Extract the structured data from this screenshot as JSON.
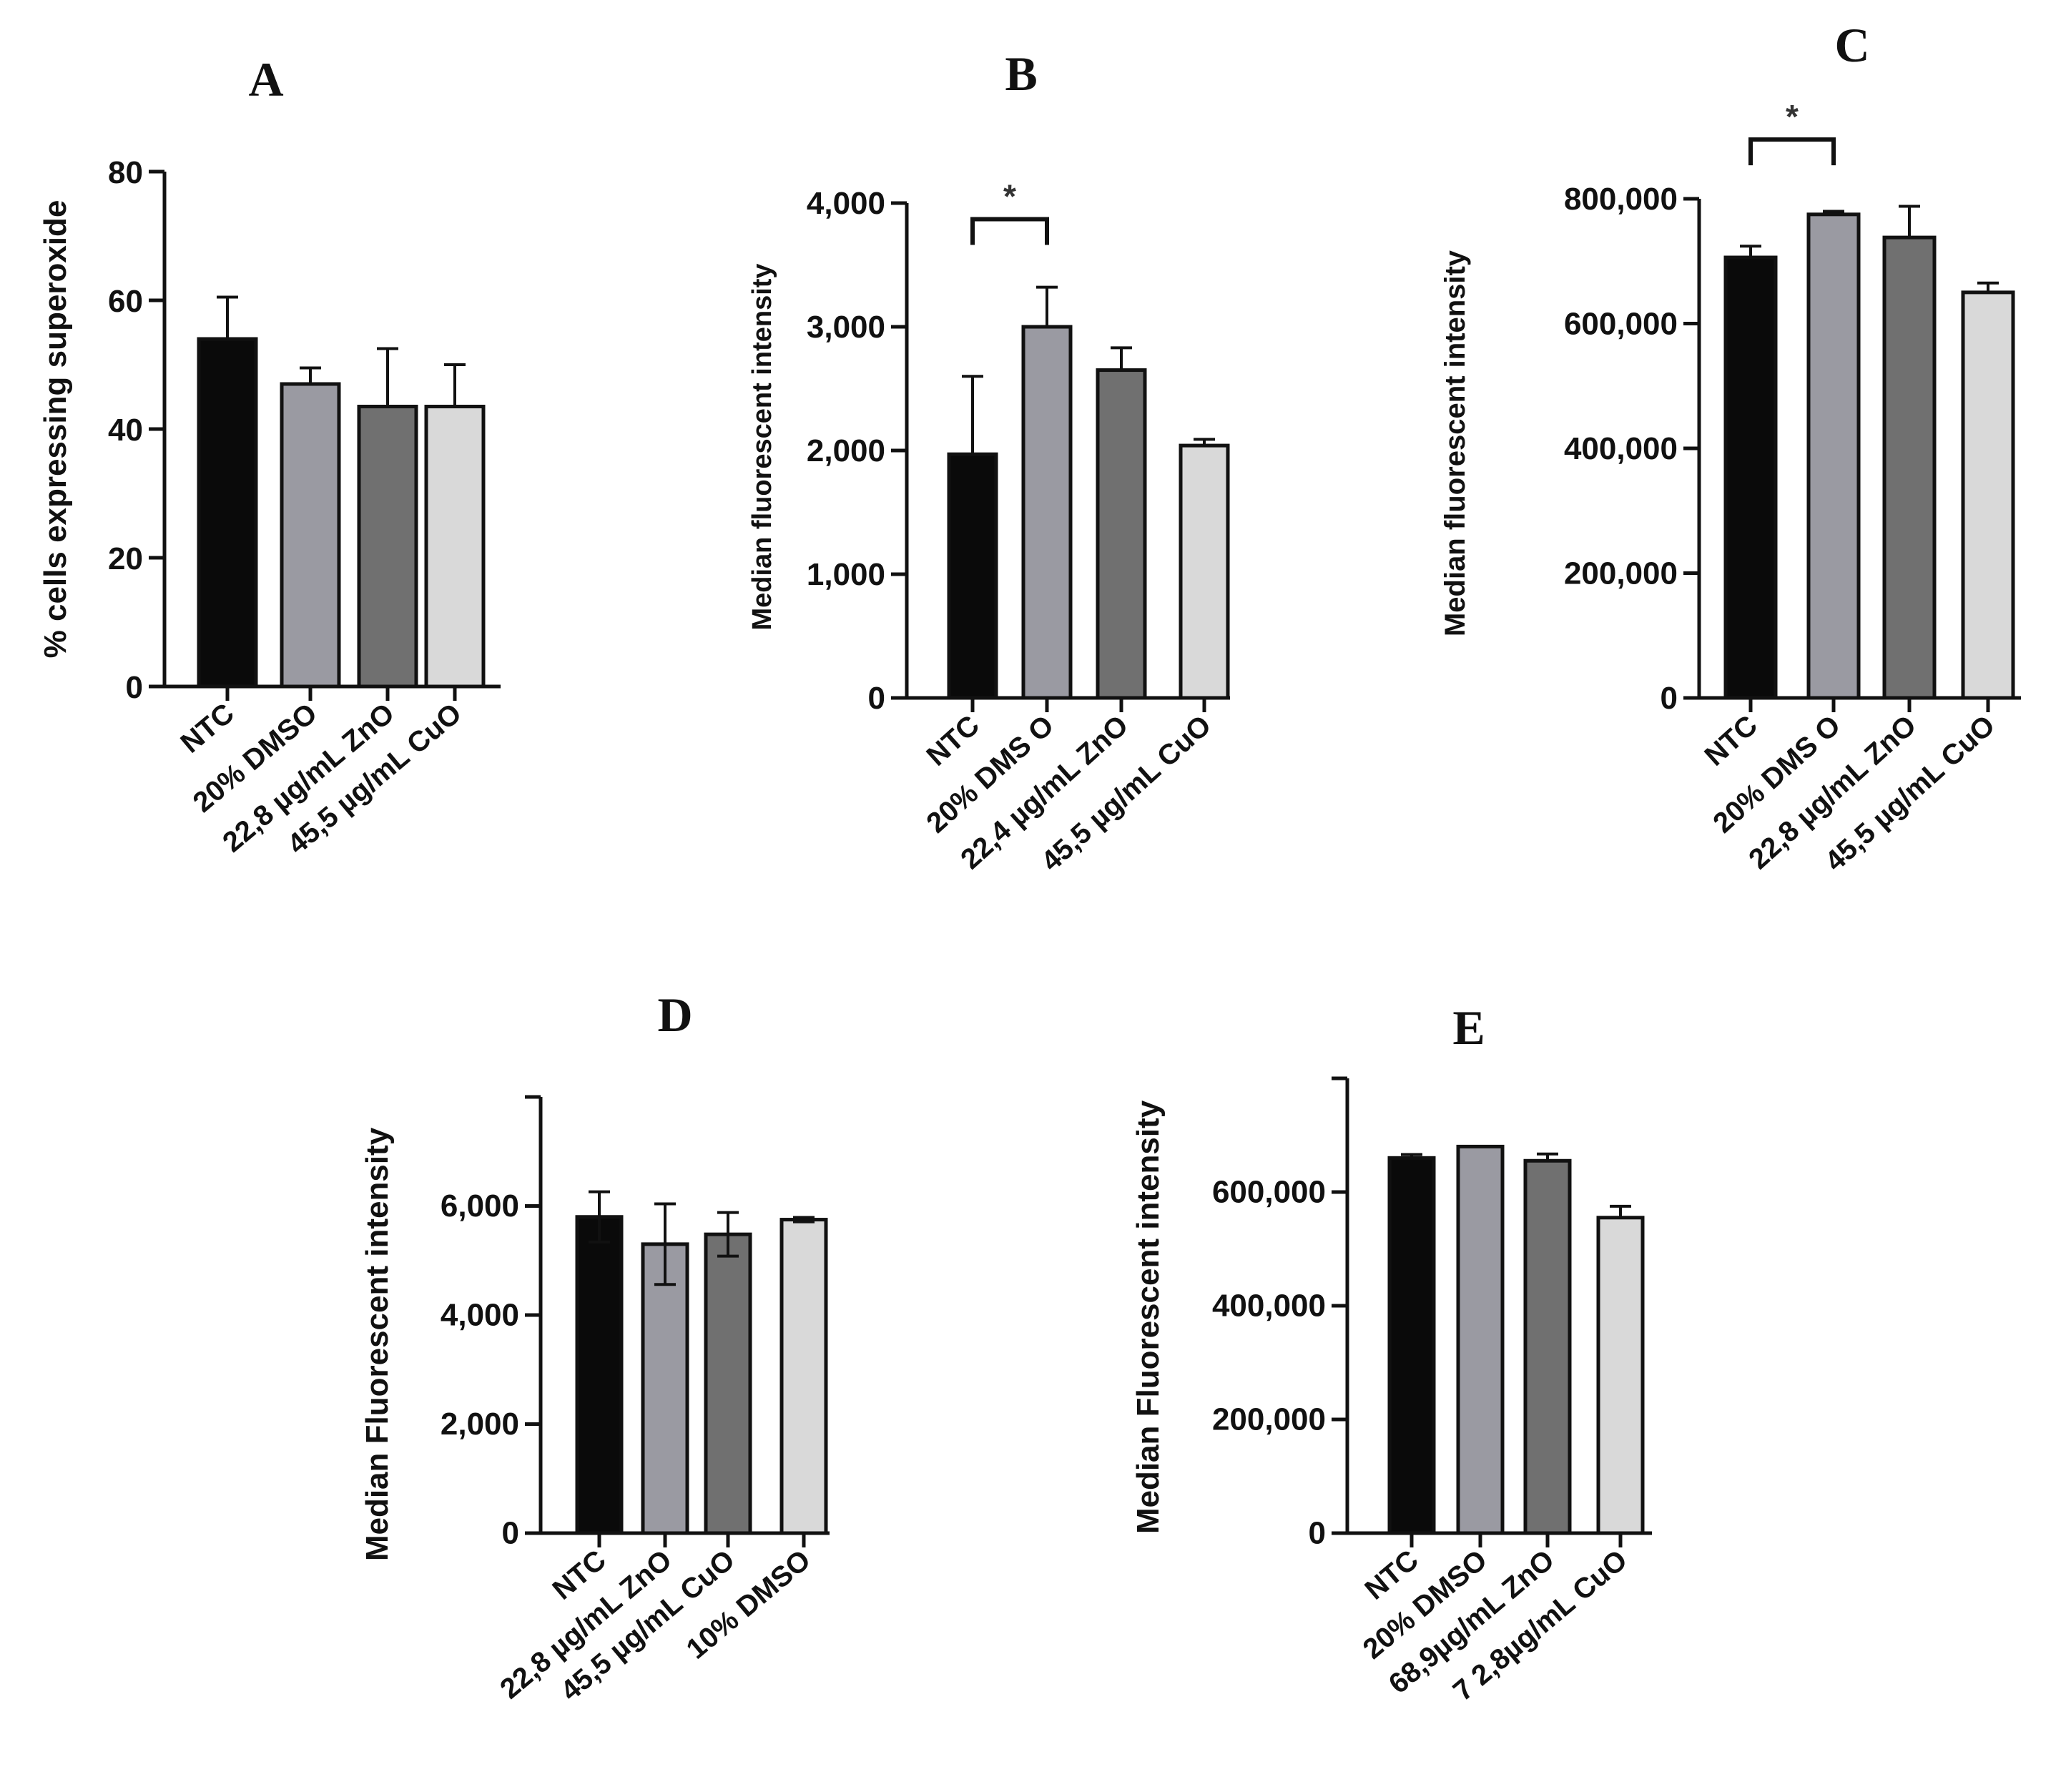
{
  "colors": {
    "bar_fills": [
      "#0a0a0a",
      "#9a9aa2",
      "#707070",
      "#d9d9d9"
    ],
    "axis": "#111111",
    "error_bar": "#111111"
  },
  "chart_data": [
    {
      "panel": "A",
      "type": "bar",
      "ylabel": "% cells expressing superoxide",
      "categories": [
        "NTC",
        "20% DMSO",
        "22,8 µg/mL ZnO",
        "45,5 µg/mL CuO"
      ],
      "values": [
        54,
        47,
        43.5,
        43.5
      ],
      "errors": [
        6.5,
        2.5,
        9,
        6.5
      ],
      "ylim": [
        0,
        80
      ],
      "yticks": [
        0,
        20,
        40,
        60,
        80
      ],
      "ytick_labels": [
        "0",
        "20",
        "40",
        "60",
        "80"
      ],
      "significance": []
    },
    {
      "panel": "B",
      "type": "bar",
      "ylabel": "Median fluorescent intensity",
      "categories": [
        "NTC",
        "20% DMS O",
        "22,4 µg/mL ZnO",
        "45,5 µg/mL CuO"
      ],
      "values": [
        1970,
        3000,
        2650,
        2040
      ],
      "errors": [
        630,
        320,
        180,
        50
      ],
      "ylim": [
        0,
        4000
      ],
      "yticks": [
        0,
        1000,
        2000,
        3000,
        4000
      ],
      "ytick_labels": [
        "0",
        "1,000",
        "2,000",
        "3,000",
        "4,000"
      ],
      "significance": [
        {
          "from": 0,
          "to": 1,
          "label": "*",
          "y": 3870
        }
      ]
    },
    {
      "panel": "C",
      "type": "bar",
      "ylabel": "Median fluorescent intensity",
      "categories": [
        "NTC",
        "20% DMS O",
        "22,8 µg/mL ZnO",
        "45,5 µg/mL CuO"
      ],
      "values": [
        706000,
        775000,
        738000,
        650000
      ],
      "errors": [
        18000,
        5000,
        50000,
        15000
      ],
      "ylim": [
        0,
        800000
      ],
      "yticks": [
        0,
        200000,
        400000,
        600000,
        800000
      ],
      "ytick_labels": [
        "0",
        "200,000",
        "400,000",
        "600,000",
        "800,000"
      ],
      "significance": [
        {
          "from": 0,
          "to": 1,
          "label": "*",
          "y": 895000
        }
      ]
    },
    {
      "panel": "D",
      "type": "bar",
      "ylabel": "Median Fluorescent intensity",
      "categories": [
        "NTC",
        "22,8 µg/mL ZnO",
        "45,5 µg/mL CuO",
        "10% DMSO"
      ],
      "values": [
        5800,
        5300,
        5480,
        5750
      ],
      "errors": [
        460,
        740,
        400,
        40
      ],
      "error_both_sides": true,
      "ylim": [
        0,
        8000
      ],
      "yticks": [
        0,
        2000,
        4000,
        6000,
        8000
      ],
      "ytick_labels": [
        "0",
        "2,000",
        "4,000",
        "6,000",
        ""
      ],
      "significance": []
    },
    {
      "panel": "E",
      "type": "bar",
      "ylabel": "Median Fluorescent intensity",
      "categories": [
        "NTC",
        "20% DMSO",
        "68,9µg/mL ZnO",
        "7 2,8µg/mL CuO"
      ],
      "values": [
        660000,
        680000,
        655000,
        555000
      ],
      "errors": [
        6000,
        0,
        12000,
        20000
      ],
      "ylim": [
        0,
        800000
      ],
      "yticks": [
        0,
        200000,
        400000,
        600000,
        800000
      ],
      "ytick_labels": [
        "0",
        "200,000",
        "400,000",
        "600,000",
        ""
      ],
      "significance": []
    }
  ]
}
